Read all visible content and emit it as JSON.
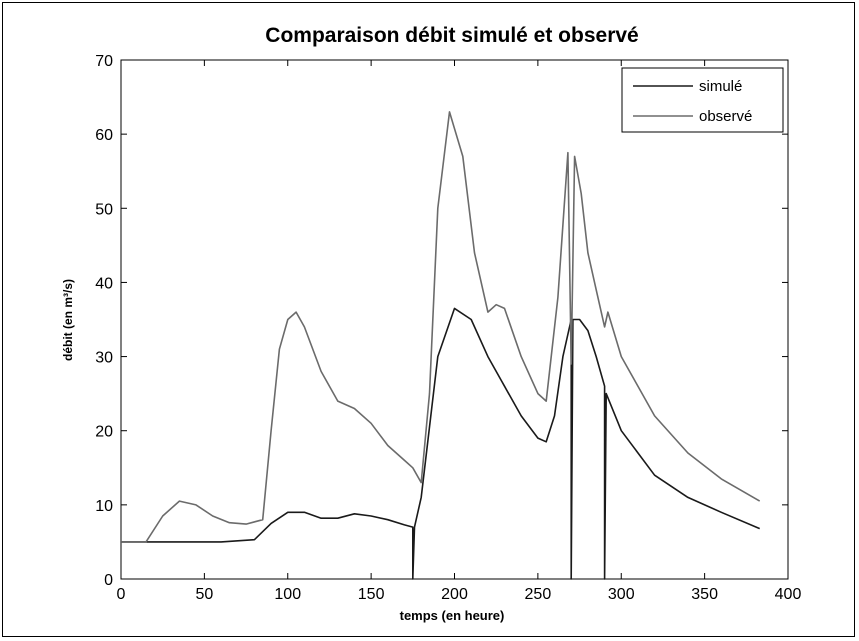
{
  "chart_data": {
    "type": "line",
    "title": "Comparaison débit simulé et observé",
    "xlabel": "temps  (en heure)",
    "ylabel": "débit (en m³/s)",
    "xlim": [
      0,
      400
    ],
    "ylim": [
      0,
      70
    ],
    "xticks": [
      "0",
      "50",
      "100",
      "150",
      "200",
      "250",
      "300",
      "350",
      "400"
    ],
    "yticks": [
      "0",
      "10",
      "20",
      "30",
      "40",
      "50",
      "60",
      "70"
    ],
    "grid": false,
    "legend_position": "top-right",
    "series": [
      {
        "name": "simulé",
        "color": "#1a1a1a",
        "x": [
          0,
          20,
          40,
          60,
          80,
          90,
          100,
          110,
          120,
          130,
          140,
          150,
          160,
          170,
          175,
          175,
          176,
          180,
          190,
          200,
          210,
          220,
          230,
          240,
          250,
          255,
          260,
          265,
          270,
          270,
          271,
          275,
          280,
          285,
          290,
          290,
          291,
          300,
          320,
          340,
          360,
          383
        ],
        "y": [
          5,
          5,
          5,
          5,
          5.3,
          7.5,
          9,
          9,
          8.2,
          8.2,
          8.8,
          8.5,
          8,
          7.3,
          7,
          0,
          7,
          11,
          30,
          36.5,
          35,
          30,
          26,
          22,
          19,
          18.5,
          22,
          30,
          35,
          0,
          35,
          35,
          33.5,
          30,
          26,
          0,
          25,
          20,
          14,
          11,
          9,
          6.8
        ]
      },
      {
        "name": "observé",
        "color": "#6b6b6b",
        "x": [
          0,
          15,
          25,
          35,
          45,
          55,
          65,
          75,
          85,
          90,
          95,
          100,
          105,
          110,
          120,
          130,
          140,
          150,
          160,
          170,
          175,
          180,
          185,
          190,
          197,
          205,
          212,
          220,
          225,
          230,
          240,
          250,
          255,
          262,
          268,
          270,
          272,
          276,
          280,
          285,
          290,
          292,
          300,
          320,
          340,
          360,
          383
        ],
        "y": [
          5,
          5,
          8.5,
          10.5,
          10,
          8.5,
          7.6,
          7.4,
          8,
          20,
          31,
          35,
          36,
          34,
          28,
          24,
          23,
          21,
          18,
          16,
          15,
          13,
          25,
          50,
          63,
          57,
          44,
          36,
          37,
          36.5,
          30,
          25,
          24,
          38,
          57.5,
          29,
          57,
          52,
          44,
          39,
          34,
          36,
          30,
          22,
          17,
          13.5,
          10.5
        ]
      }
    ]
  }
}
